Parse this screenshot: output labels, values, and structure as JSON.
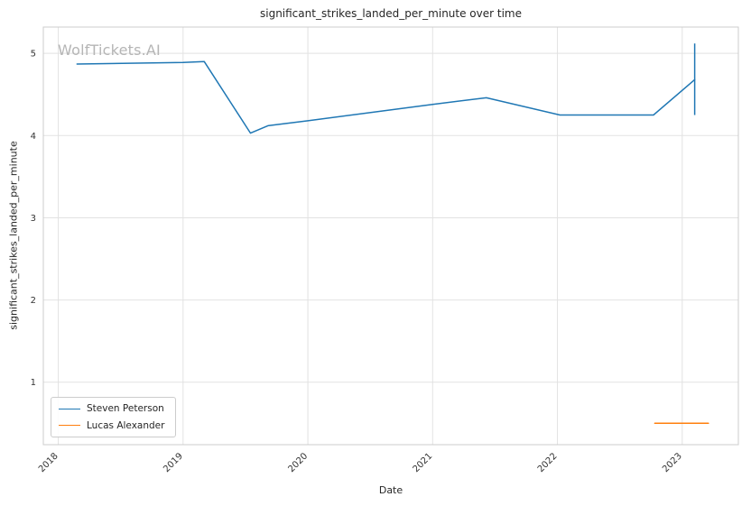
{
  "chart_data": {
    "type": "line",
    "title": "significant_strikes_landed_per_minute over time",
    "xlabel": "Date",
    "ylabel": "significant_strikes_landed_per_minute",
    "watermark": "WolfTickets.AI",
    "grid": true,
    "legend_position": "lower left",
    "xlim": [
      2017.88,
      2023.45
    ],
    "ylim": [
      0.24,
      5.32
    ],
    "xticks": [
      {
        "value": 2018,
        "label": "2018"
      },
      {
        "value": 2019,
        "label": "2019"
      },
      {
        "value": 2020,
        "label": "2020"
      },
      {
        "value": 2021,
        "label": "2021"
      },
      {
        "value": 2022,
        "label": "2022"
      },
      {
        "value": 2023,
        "label": "2023"
      }
    ],
    "yticks": [
      {
        "value": 1,
        "label": "1"
      },
      {
        "value": 2,
        "label": "2"
      },
      {
        "value": 3,
        "label": "3"
      },
      {
        "value": 4,
        "label": "4"
      },
      {
        "value": 5,
        "label": "5"
      }
    ],
    "series": [
      {
        "name": "Steven Peterson",
        "color": "#1f77b4",
        "x": [
          2018.15,
          2019.0,
          2019.17,
          2019.54,
          2019.68,
          2020.0,
          2021.0,
          2021.43,
          2022.02,
          2022.77,
          2023.1
        ],
        "y": [
          4.87,
          4.89,
          4.9,
          4.03,
          4.12,
          4.18,
          4.38,
          4.46,
          4.25,
          4.25,
          4.68
        ]
      },
      {
        "name": "Lucas Alexander",
        "color": "#ff7f0e",
        "x": [
          2022.78,
          2023.21
        ],
        "y": [
          0.5,
          0.5
        ]
      }
    ],
    "error_bar": {
      "series": "Steven Peterson",
      "x": 2023.1,
      "y_low": 4.25,
      "y_high": 5.12,
      "color": "#1f77b4"
    },
    "colors": {
      "grid": "#e2e2e2",
      "spine": "#cccccc",
      "text": "#333333",
      "watermark": "#b5b5b5"
    }
  }
}
